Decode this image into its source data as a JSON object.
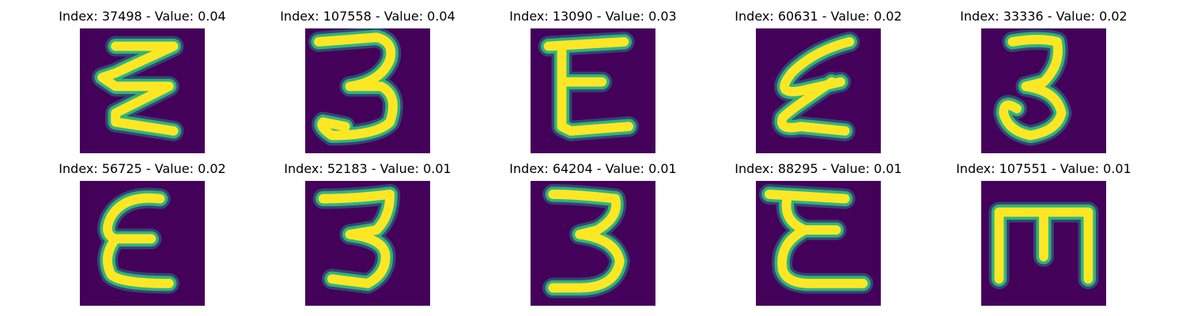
{
  "colors": {
    "background": "#44015a",
    "ink_dark": "#2a7b8e",
    "ink_mid": "#2fb47c",
    "ink_bright": "#fde725"
  },
  "grid": {
    "tiles": [
      {
        "title": "Index: 37498 - Value: 0.04",
        "glyph": "zigzag-3"
      },
      {
        "title": "Index: 107558 - Value: 0.04",
        "glyph": "three-wide"
      },
      {
        "title": "Index: 13090 - Value: 0.03",
        "glyph": "epsilon-flat"
      },
      {
        "title": "Index: 60631 - Value: 0.02",
        "glyph": "epsilon-slanted"
      },
      {
        "title": "Index: 33336 - Value: 0.02",
        "glyph": "three-round"
      },
      {
        "title": "Index: 56725 - Value: 0.02",
        "glyph": "epsilon-round"
      },
      {
        "title": "Index: 52183 - Value: 0.01",
        "glyph": "three-narrow"
      },
      {
        "title": "Index: 64204 - Value: 0.01",
        "glyph": "three-tall"
      },
      {
        "title": "Index: 88295 - Value: 0.01",
        "glyph": "epsilon-long"
      },
      {
        "title": "Index: 107551 - Value: 0.01",
        "glyph": "block-e"
      }
    ]
  }
}
